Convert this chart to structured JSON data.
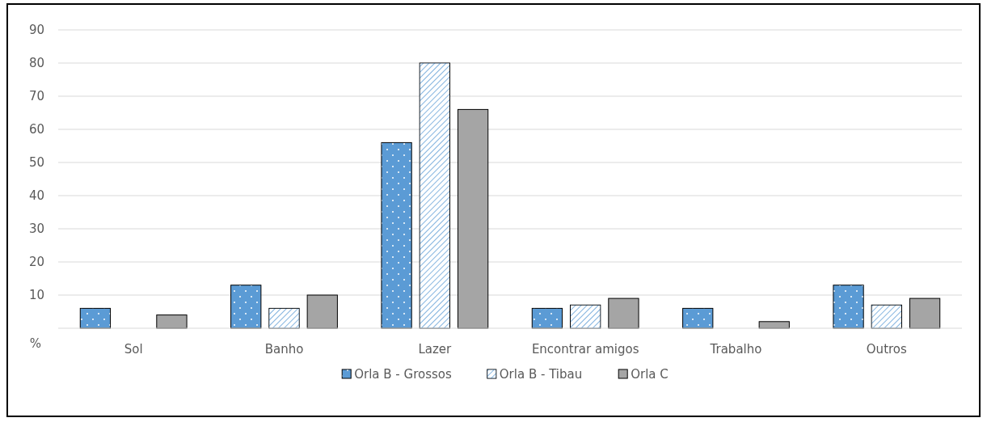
{
  "chart_data": {
    "type": "bar",
    "ylabel": "%",
    "categories": [
      "Sol",
      "Banho",
      "Lazer",
      "Encontrar amigos",
      "Trabalho",
      "Outros"
    ],
    "series": [
      {
        "name": "Orla B - Grossos",
        "color": "#5b9bd5",
        "values": [
          6,
          13,
          56,
          6,
          6,
          13
        ]
      },
      {
        "name": "Orla B - Tibau",
        "color": "#5b9bd5",
        "values": [
          null,
          6,
          80,
          7,
          null,
          7
        ]
      },
      {
        "name": "Orla C",
        "color": "#a5a5a5",
        "values": [
          4,
          10,
          66,
          9,
          2,
          9
        ]
      }
    ],
    "ylim": [
      0,
      90
    ],
    "yticks": [
      10,
      20,
      30,
      40,
      50,
      60,
      70,
      80,
      90
    ],
    "grid": "y",
    "legend": "bottom"
  }
}
